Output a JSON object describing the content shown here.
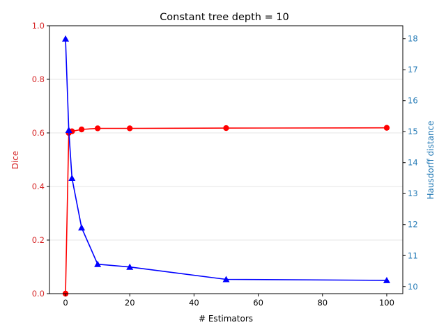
{
  "chart_data": {
    "type": "line",
    "title": "Constant tree depth = 10",
    "xlabel": "# Estimators",
    "ylabel_left": "Dice",
    "ylabel_right": "Hausdorff distance",
    "xlim": [
      -5,
      105
    ],
    "ylim_left": [
      0.0,
      1.0
    ],
    "ylim_right": [
      9.77,
      18.42
    ],
    "x_ticks": [
      0,
      20,
      40,
      60,
      80,
      100
    ],
    "x_tick_labels": [
      "0",
      "20",
      "40",
      "60",
      "80",
      "100"
    ],
    "y_left_ticks": [
      0.0,
      0.2,
      0.4,
      0.6,
      0.8,
      1.0
    ],
    "y_left_tick_labels": [
      "0.0",
      "0.2",
      "0.4",
      "0.6",
      "0.8",
      "1.0"
    ],
    "y_right_ticks": [
      10,
      11,
      12,
      13,
      14,
      15,
      16,
      17,
      18
    ],
    "y_right_tick_labels": [
      "10",
      "11",
      "12",
      "13",
      "14",
      "15",
      "16",
      "17",
      "18"
    ],
    "grid": "horizontal",
    "left_axis_color": "#d62728",
    "right_axis_color": "#1f77b4",
    "series": [
      {
        "axis": "left",
        "color": "#ff0000",
        "marker": "circle",
        "x": [
          0,
          1,
          2,
          5,
          10,
          20,
          50,
          100
        ],
        "values": [
          0.0,
          0.6,
          0.606,
          0.613,
          0.617,
          0.617,
          0.618,
          0.619
        ]
      },
      {
        "axis": "right",
        "color": "#0000ff",
        "marker": "triangle",
        "x": [
          0,
          1,
          2,
          5,
          10,
          20,
          50,
          100
        ],
        "values": [
          18.0,
          15.05,
          13.5,
          11.9,
          10.72,
          10.63,
          10.23,
          10.2
        ]
      }
    ]
  }
}
